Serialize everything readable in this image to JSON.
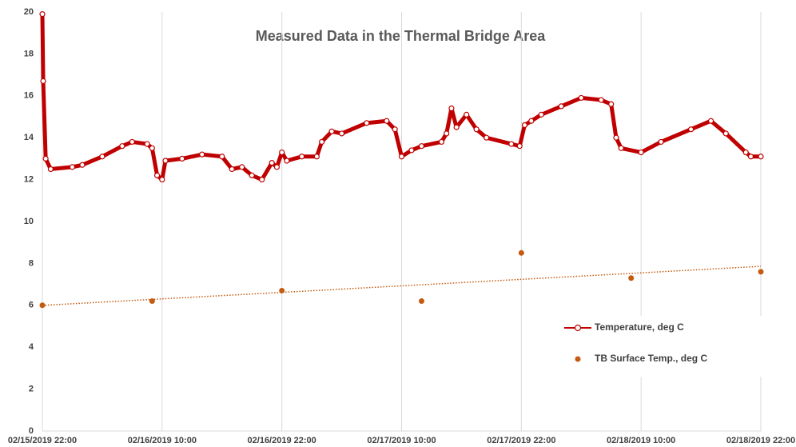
{
  "chart_data": {
    "type": "line",
    "title": "Measured Data in the Thermal Bridge Area",
    "xlim": [
      "02/15/2019 22:00",
      "02/18/2019 22:00"
    ],
    "xticks": [
      "02/15/2019 22:00",
      "02/16/2019 10:00",
      "02/16/2019 22:00",
      "02/17/2019 10:00",
      "02/17/2019 22:00",
      "02/18/2019 10:00",
      "02/18/2019 22:00"
    ],
    "ylim": [
      0,
      20
    ],
    "yticks": [
      0,
      2,
      4,
      6,
      8,
      10,
      12,
      14,
      16,
      18,
      20
    ],
    "grid": "x",
    "legend": "right",
    "series": [
      {
        "name": "Temperature, deg C",
        "type": "line",
        "color": "#c00000",
        "x": [
          "02/15/2019 22:00",
          "02/15/2019 22:05",
          "02/15/2019 22:20",
          "02/15/2019 22:50",
          "02/16/2019 01:00",
          "02/16/2019 02:00",
          "02/16/2019 04:00",
          "02/16/2019 06:00",
          "02/16/2019 07:00",
          "02/16/2019 08:30",
          "02/16/2019 09:00",
          "02/16/2019 09:30",
          "02/16/2019 10:00",
          "02/16/2019 10:20",
          "02/16/2019 12:00",
          "02/16/2019 14:00",
          "02/16/2019 16:00",
          "02/16/2019 17:00",
          "02/16/2019 18:00",
          "02/16/2019 19:00",
          "02/16/2019 20:00",
          "02/16/2019 21:00",
          "02/16/2019 21:30",
          "02/16/2019 22:00",
          "02/16/2019 22:30",
          "02/17/2019 00:00",
          "02/17/2019 01:30",
          "02/17/2019 02:00",
          "02/17/2019 03:00",
          "02/17/2019 04:00",
          "02/17/2019 06:30",
          "02/17/2019 08:30",
          "02/17/2019 09:20",
          "02/17/2019 10:00",
          "02/17/2019 11:00",
          "02/17/2019 12:00",
          "02/17/2019 14:00",
          "02/17/2019 14:30",
          "02/17/2019 15:00",
          "02/17/2019 15:30",
          "02/17/2019 16:30",
          "02/17/2019 17:30",
          "02/17/2019 18:30",
          "02/17/2019 21:00",
          "02/17/2019 21:50",
          "02/17/2019 22:20",
          "02/17/2019 23:00",
          "02/18/2019 00:00",
          "02/18/2019 02:00",
          "02/18/2019 04:00",
          "02/18/2019 06:00",
          "02/18/2019 07:00",
          "02/18/2019 07:30",
          "02/18/2019 08:00",
          "02/18/2019 10:00",
          "02/18/2019 12:00",
          "02/18/2019 15:00",
          "02/18/2019 17:00",
          "02/18/2019 18:30",
          "02/18/2019 20:30",
          "02/18/2019 21:00",
          "02/18/2019 22:00"
        ],
        "values": [
          19.9,
          16.7,
          13.0,
          12.5,
          12.6,
          12.7,
          13.1,
          13.6,
          13.8,
          13.7,
          13.5,
          12.2,
          12.0,
          12.9,
          13.0,
          13.2,
          13.1,
          12.5,
          12.6,
          12.2,
          12.0,
          12.8,
          12.6,
          13.3,
          12.9,
          13.1,
          13.1,
          13.8,
          14.3,
          14.2,
          14.7,
          14.8,
          14.4,
          13.1,
          13.4,
          13.6,
          13.8,
          14.2,
          15.4,
          14.5,
          15.1,
          14.4,
          14.0,
          13.7,
          13.6,
          14.6,
          14.8,
          15.1,
          15.5,
          15.9,
          15.8,
          15.6,
          14.0,
          13.5,
          13.3,
          13.8,
          14.4,
          14.8,
          14.2,
          13.3,
          13.1,
          13.1
        ]
      },
      {
        "name": "TB Surface Temp., deg C",
        "type": "scatter",
        "color": "#c55a11",
        "trendline": "linear",
        "x": [
          "02/15/2019 22:00",
          "02/16/2019 09:00",
          "02/16/2019 22:00",
          "02/17/2019 12:00",
          "02/17/2019 22:00",
          "02/18/2019 09:00",
          "02/18/2019 22:00"
        ],
        "values": [
          6.0,
          6.2,
          6.7,
          6.2,
          8.5,
          7.3,
          7.6
        ]
      }
    ]
  }
}
